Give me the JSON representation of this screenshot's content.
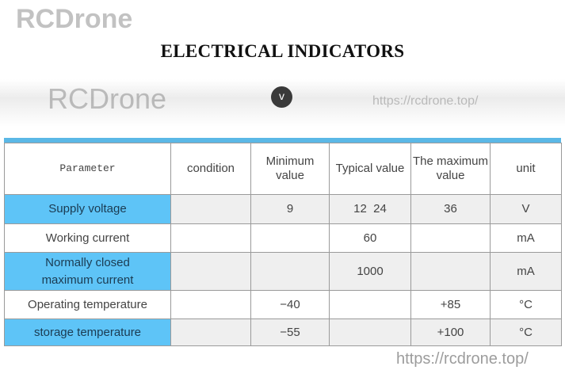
{
  "title": "ELECTRICAL INDICATORS",
  "badge": {
    "label": "v",
    "icon": "chevron-down-icon"
  },
  "colors": {
    "accent": "#5bb8e6",
    "param_highlight": "#5ec4f7",
    "alt_row": "#efefef"
  },
  "table": {
    "headers": [
      "Parameter",
      "condition",
      "Minimum value",
      "Typical value",
      "The maximum value",
      "unit"
    ],
    "rows": [
      [
        "Supply voltage",
        "",
        "9",
        "12  24",
        "36",
        "V"
      ],
      [
        "Working current",
        "",
        "",
        "60",
        "",
        "mA"
      ],
      [
        "Normally closed maximum current",
        "",
        "",
        "1000",
        "",
        "mA"
      ],
      [
        "Operating temperature",
        "",
        "−40",
        "",
        "+85",
        "°C"
      ],
      [
        "storage temperature",
        "",
        "−55",
        "",
        "+100",
        "°C"
      ]
    ]
  },
  "watermarks": [
    "RCDrone",
    "https://rcdrone.top/",
    "RCDrone",
    "https://rcdrone.top/"
  ]
}
